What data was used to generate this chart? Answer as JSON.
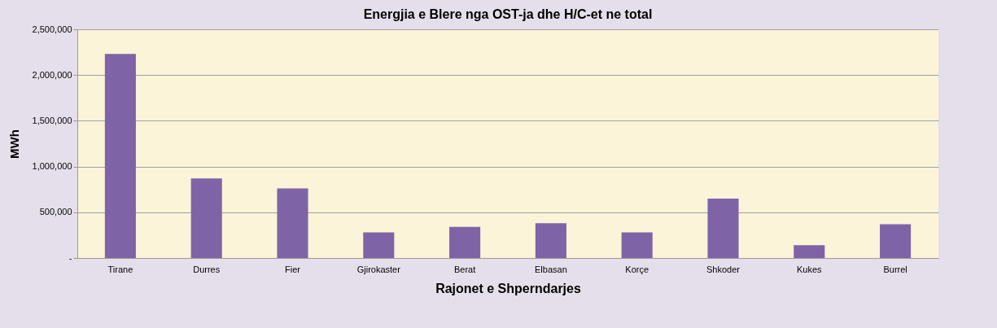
{
  "chart_data": {
    "type": "bar",
    "title": "Energjia e Blere nga OST-ja dhe H/C-et ne total",
    "xlabel": "Rajonet e Shperndarjes",
    "ylabel": "MWh",
    "categories": [
      "Tirane",
      "Durres",
      "Fier",
      "Gjirokaster",
      "Berat",
      "Elbasan",
      "Korçe",
      "Shkoder",
      "Kukes",
      "Burrel"
    ],
    "values": [
      2230000,
      870000,
      760000,
      280000,
      340000,
      380000,
      280000,
      650000,
      140000,
      370000
    ],
    "color": "#7e64a6",
    "ylim": [
      0,
      2500000
    ],
    "yticks": [
      {
        "value": 0,
        "label": "-"
      },
      {
        "value": 500000,
        "label": "500,000"
      },
      {
        "value": 1000000,
        "label": "1,000,000"
      },
      {
        "value": 1500000,
        "label": "1,500,000"
      },
      {
        "value": 2000000,
        "label": "2,000,000"
      },
      {
        "value": 2500000,
        "label": "2,500,000"
      }
    ],
    "grid": "y"
  }
}
